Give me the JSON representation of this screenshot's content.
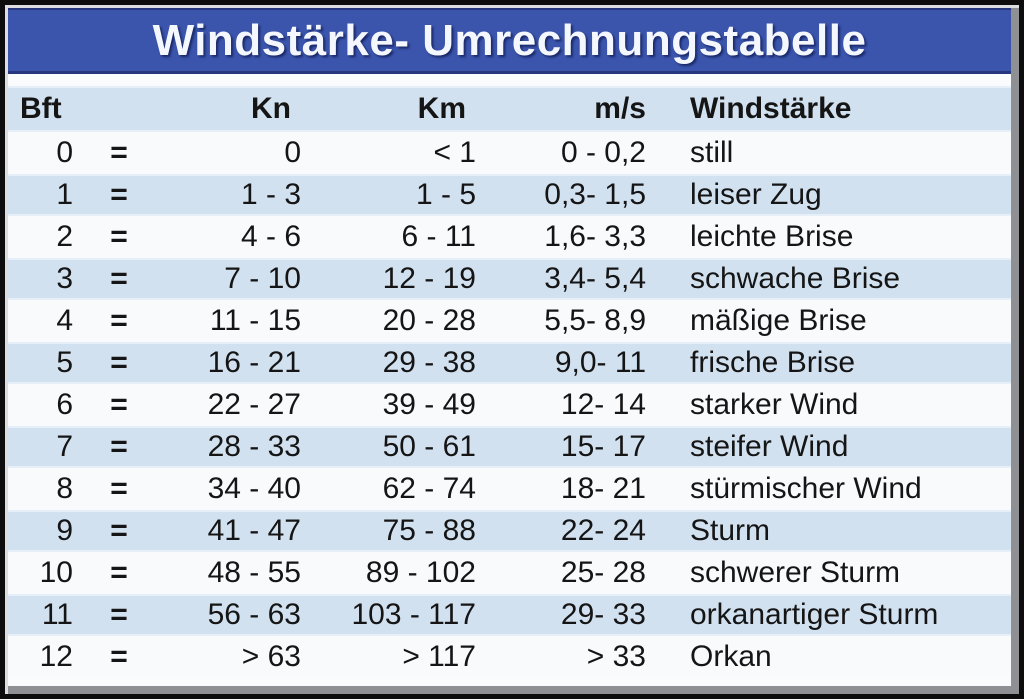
{
  "title": "Windstärke- Umrechnungstabelle",
  "colors": {
    "title_bar_blue": "#3b55ad",
    "title_text": "#f4f7fd",
    "row_stripe_blue": "#d2e1f0",
    "row_white": "#f8fafc",
    "text": "#151515",
    "frame_border": "#0d0d0d",
    "frame_bevel_gray": "#8e9094"
  },
  "table": {
    "equals_sign": "=",
    "headers": {
      "bft": "Bft",
      "kn": "Kn",
      "km": "Km",
      "ms": "m/s",
      "name": "Windstärke"
    },
    "rows": [
      {
        "bft": "0",
        "kn": "0",
        "km": "< 1",
        "ms": "0 - 0,2",
        "name": "still"
      },
      {
        "bft": "1",
        "kn": "1 - 3",
        "km": "1 - 5",
        "ms": "0,3- 1,5",
        "name": "leiser Zug"
      },
      {
        "bft": "2",
        "kn": "4 - 6",
        "km": "6 - 11",
        "ms": "1,6- 3,3",
        "name": "leichte Brise"
      },
      {
        "bft": "3",
        "kn": "7 - 10",
        "km": "12 - 19",
        "ms": "3,4- 5,4",
        "name": "schwache Brise"
      },
      {
        "bft": "4",
        "kn": "11 - 15",
        "km": "20 - 28",
        "ms": "5,5- 8,9",
        "name": "mäßige Brise"
      },
      {
        "bft": "5",
        "kn": "16 - 21",
        "km": "29 - 38",
        "ms": "9,0- 11",
        "name": "frische Brise"
      },
      {
        "bft": "6",
        "kn": "22 - 27",
        "km": "39 - 49",
        "ms": "12- 14",
        "name": "starker Wind"
      },
      {
        "bft": "7",
        "kn": "28 - 33",
        "km": "50 - 61",
        "ms": "15- 17",
        "name": "steifer Wind"
      },
      {
        "bft": "8",
        "kn": "34 - 40",
        "km": "62 - 74",
        "ms": "18- 21",
        "name": "stürmischer Wind"
      },
      {
        "bft": "9",
        "kn": "41 - 47",
        "km": "75 - 88",
        "ms": "22- 24",
        "name": "Sturm"
      },
      {
        "bft": "10",
        "kn": "48 - 55",
        "km": "89 - 102",
        "ms": "25- 28",
        "name": "schwerer Sturm"
      },
      {
        "bft": "11",
        "kn": "56 - 63",
        "km": "103 - 117",
        "ms": "29- 33",
        "name": "orkanartiger Sturm"
      },
      {
        "bft": "12",
        "kn": "> 63",
        "km": "> 117",
        "ms": "> 33",
        "name": "Orkan"
      }
    ]
  },
  "chart_data": {
    "type": "table",
    "title": "Windstärke- Umrechnungstabelle",
    "columns": [
      "Bft",
      "Kn",
      "Km",
      "m/s",
      "Windstärke"
    ],
    "rows": [
      [
        "0",
        "0",
        "< 1",
        "0 - 0,2",
        "still"
      ],
      [
        "1",
        "1 - 3",
        "1 - 5",
        "0,3- 1,5",
        "leiser Zug"
      ],
      [
        "2",
        "4 - 6",
        "6 - 11",
        "1,6- 3,3",
        "leichte Brise"
      ],
      [
        "3",
        "7 - 10",
        "12 - 19",
        "3,4- 5,4",
        "schwache Brise"
      ],
      [
        "4",
        "11 - 15",
        "20 - 28",
        "5,5- 8,9",
        "mäßige Brise"
      ],
      [
        "5",
        "16 - 21",
        "29 - 38",
        "9,0- 11",
        "frische Brise"
      ],
      [
        "6",
        "22 - 27",
        "39 - 49",
        "12- 14",
        "starker Wind"
      ],
      [
        "7",
        "28 - 33",
        "50 - 61",
        "15- 17",
        "steifer Wind"
      ],
      [
        "8",
        "34 - 40",
        "62 - 74",
        "18- 21",
        "stürmischer Wind"
      ],
      [
        "9",
        "41 - 47",
        "75 - 88",
        "22- 24",
        "Sturm"
      ],
      [
        "10",
        "48 - 55",
        "89 - 102",
        "25- 28",
        "schwerer Sturm"
      ],
      [
        "11",
        "56 - 63",
        "103 - 117",
        "29- 33",
        "orkanartiger Sturm"
      ],
      [
        "12",
        "> 63",
        "> 117",
        "> 33",
        "Orkan"
      ]
    ]
  }
}
